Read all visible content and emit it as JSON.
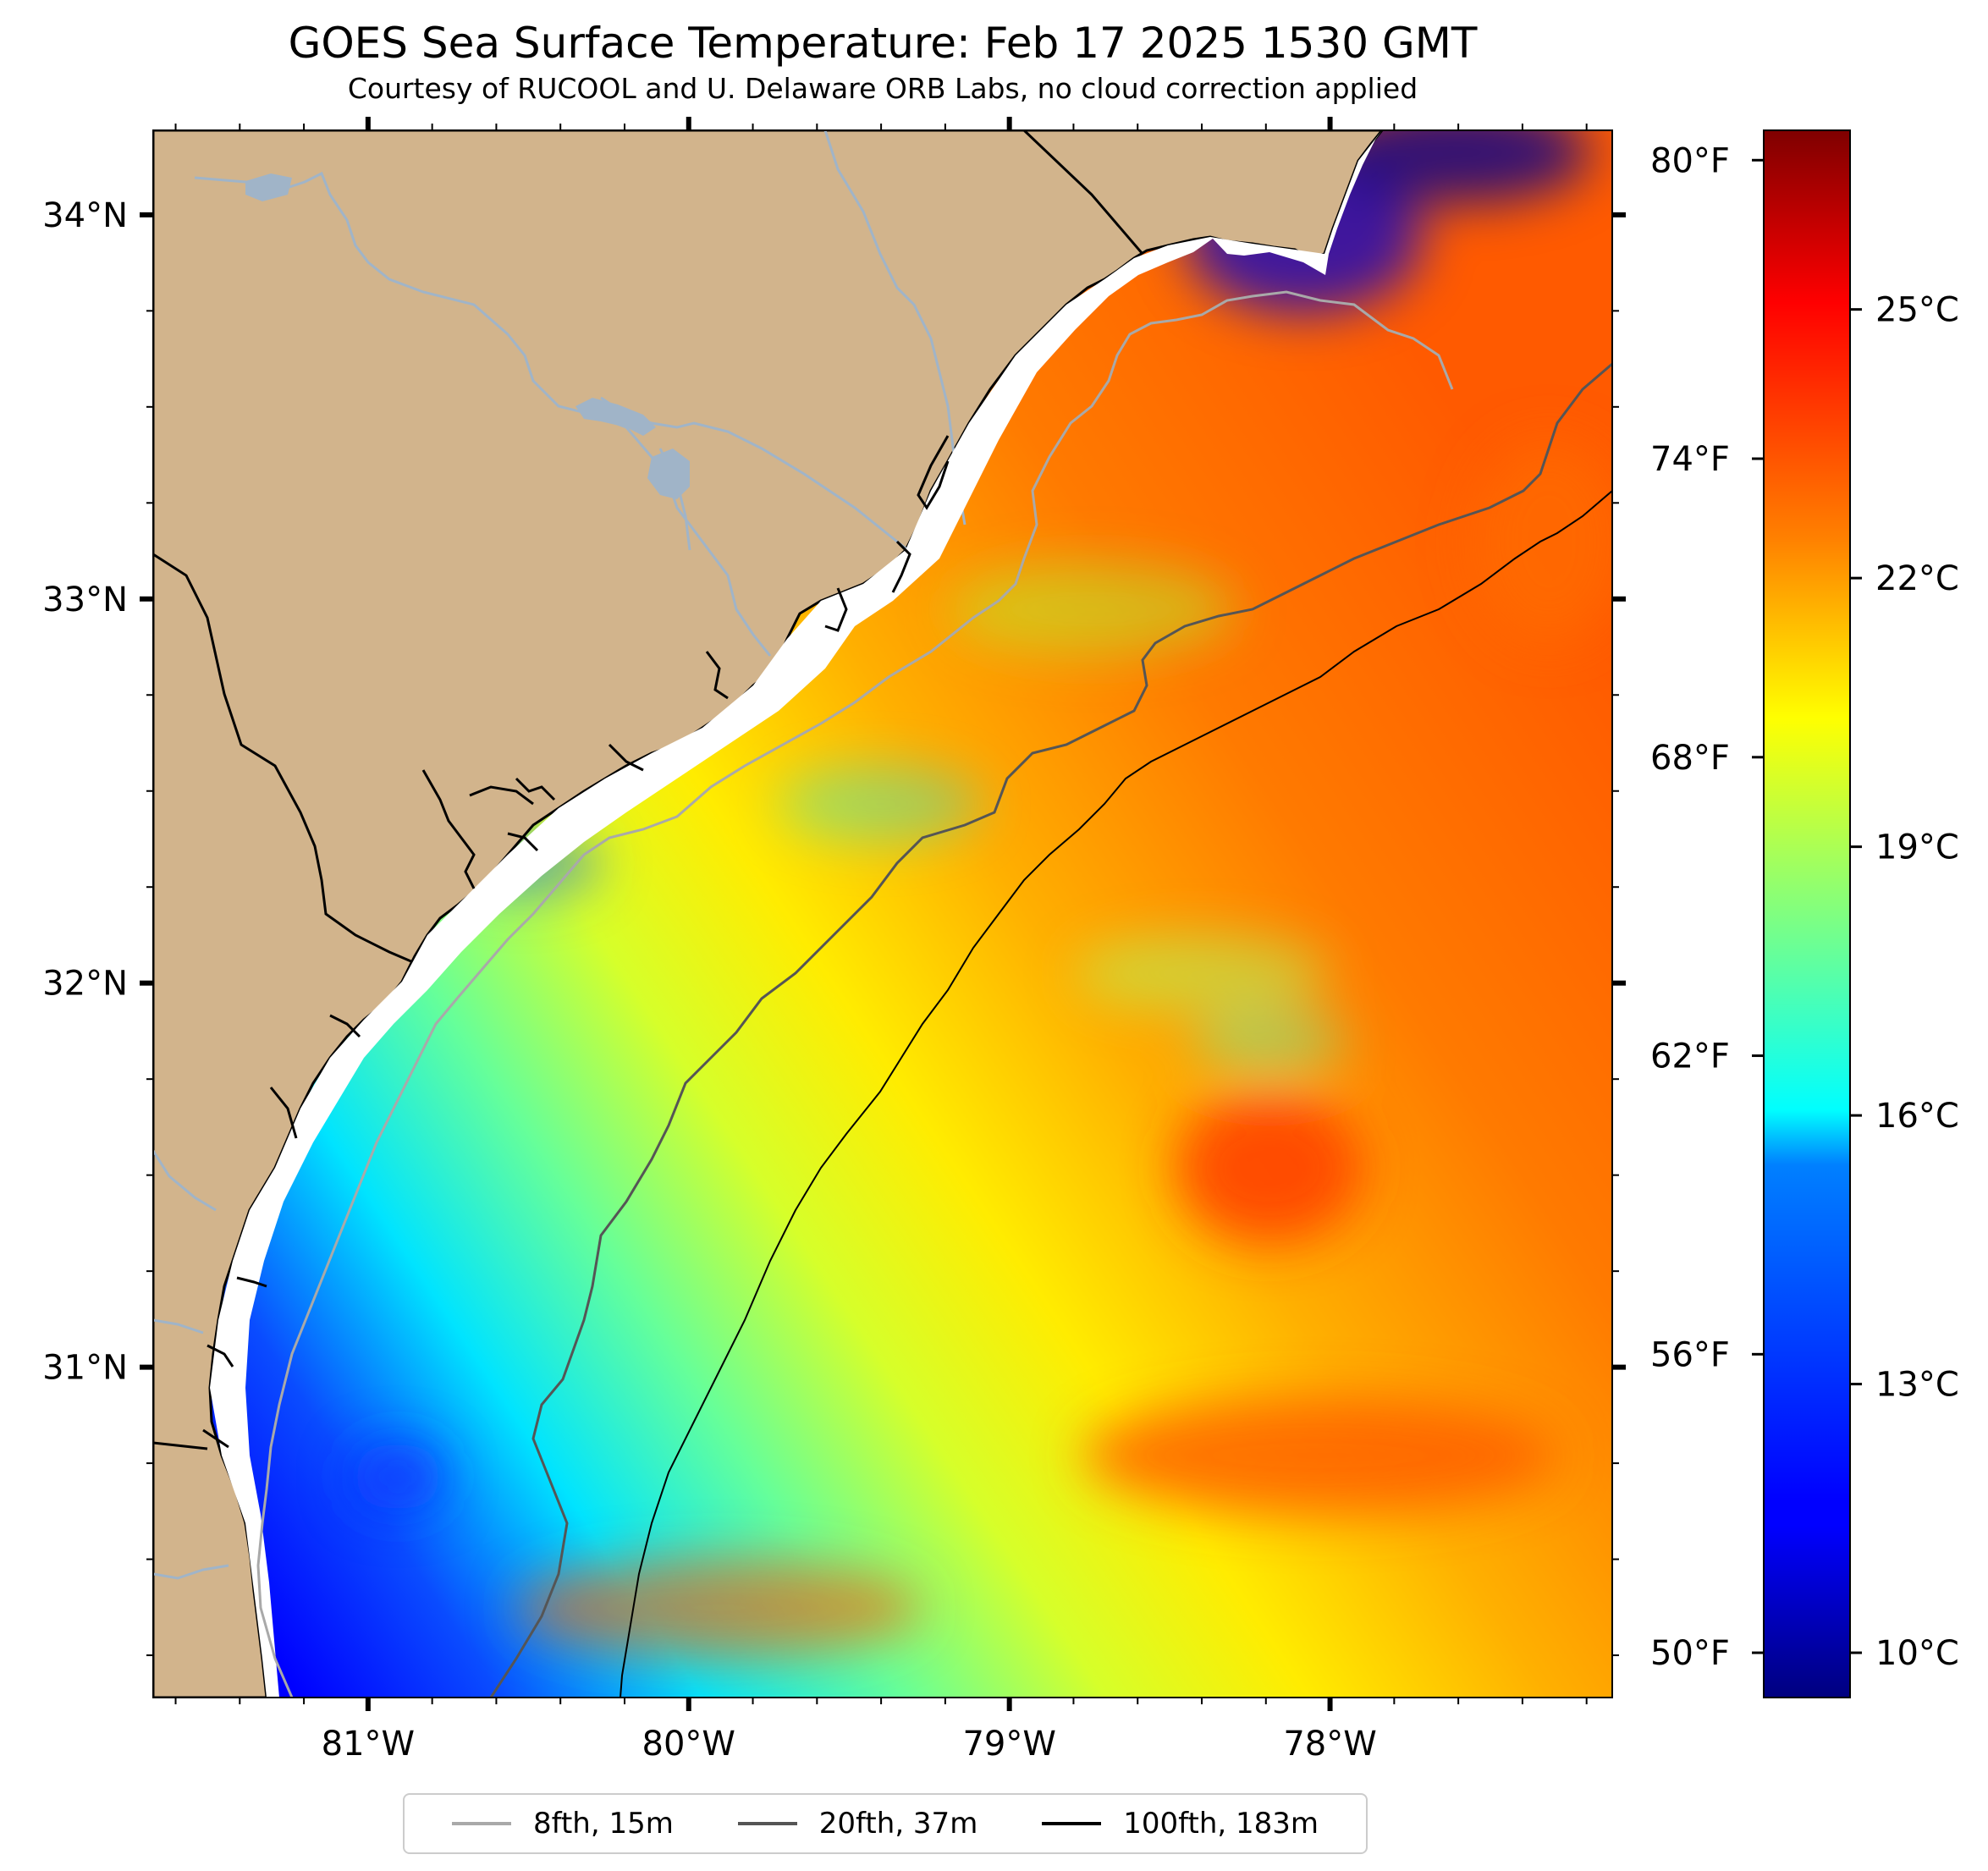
{
  "title": "GOES Sea Surface Temperature: Feb 17 2025 1530 GMT",
  "subtitle": "Courtesy of RUCOOL and U. Delaware ORB Labs, no cloud correction applied",
  "map": {
    "lon_range": [
      -81.67,
      -77.12
    ],
    "lat_range": [
      30.14,
      34.22
    ],
    "lat_ticks": [
      {
        "value": 34,
        "label": "34°N"
      },
      {
        "value": 33,
        "label": "33°N"
      },
      {
        "value": 32,
        "label": "32°N"
      },
      {
        "value": 31,
        "label": "31°N"
      }
    ],
    "lon_ticks": [
      {
        "value": -81,
        "label": "81°W"
      },
      {
        "value": -80,
        "label": "80°W"
      },
      {
        "value": -79,
        "label": "79°W"
      },
      {
        "value": -78,
        "label": "78°W"
      }
    ],
    "land_color": "#d2b48c",
    "coast_color": "#000000",
    "river_color": "#a0b4c8"
  },
  "colorbar": {
    "colormap": "jet",
    "range_c": [
      9.5,
      27
    ],
    "celsius_ticks": [
      {
        "value": 10,
        "label": "10°C"
      },
      {
        "value": 13,
        "label": "13°C"
      },
      {
        "value": 16,
        "label": "16°C"
      },
      {
        "value": 19,
        "label": "19°C"
      },
      {
        "value": 22,
        "label": "22°C"
      },
      {
        "value": 25,
        "label": "25°C"
      }
    ],
    "fahrenheit_ticks": [
      {
        "value": 50,
        "label": "50°F"
      },
      {
        "value": 56,
        "label": "56°F"
      },
      {
        "value": 62,
        "label": "62°F"
      },
      {
        "value": 68,
        "label": "68°F"
      },
      {
        "value": 74,
        "label": "74°F"
      },
      {
        "value": 80,
        "label": "80°F"
      }
    ]
  },
  "legend": [
    {
      "label": "8fth, 15m",
      "color": "#a9a9a9"
    },
    {
      "label": "20fth, 37m",
      "color": "#555555"
    },
    {
      "label": "100fth, 183m",
      "color": "#000000"
    }
  ]
}
